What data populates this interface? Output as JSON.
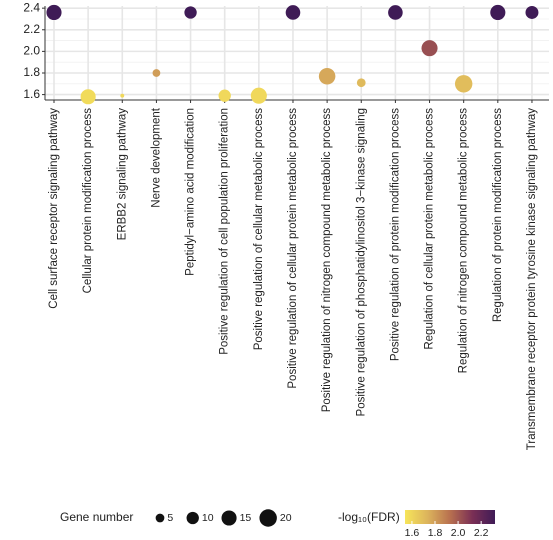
{
  "chart_data": {
    "type": "bubble",
    "categories": [
      "Cell surface receptor signaling pathway",
      "Cellular protein modification process",
      "ERBB2 signaling pathway",
      "Nerve development",
      "Peptidyl−amino acid modification",
      "Positive regulation of cell population proliferation",
      "Positive regulation of cellular metabolic process",
      "Positive regulation of cellular protein metabolic process",
      "Positive regulation of nitrogen compound metabolic process",
      "Positive regulation of phosphatidylinositol 3−kinase signaling",
      "Positive regulation of protein modification process",
      "Regulation of cellular protein metabolic process",
      "Regulation of nitrogen compound metabolic process",
      "Regulation of protein modification process",
      "Transmembrane receptor protein tyrosine kinase signaling pathway"
    ],
    "values": [
      2.36,
      1.58,
      1.59,
      1.8,
      2.36,
      1.59,
      1.59,
      2.36,
      1.77,
      1.71,
      2.36,
      2.03,
      1.7,
      2.36,
      2.36
    ],
    "sizes": [
      15,
      15,
      1,
      4,
      10,
      10,
      17,
      14,
      18,
      5,
      14,
      17,
      20,
      15,
      11
    ],
    "ylim": [
      1.55,
      2.42
    ],
    "yticks": [
      1.6,
      1.8,
      {
        "value": 2,
        "label": "2.0"
      },
      2.2,
      2.4
    ],
    "grid": true,
    "size_legend": {
      "title": "Gene number",
      "values": [
        5,
        10,
        15,
        20
      ]
    },
    "colorbar": {
      "title": "-log₁₀(FDR)",
      "lim": [
        1.54,
        2.32
      ],
      "ticks": [
        1.6,
        1.8,
        {
          "value": 2,
          "label": "2.0"
        },
        2.2
      ],
      "colors": [
        "#f7e55a",
        "#dcb45c",
        "#b8704f",
        "#7a2f55",
        "#3f1b56"
      ]
    }
  }
}
